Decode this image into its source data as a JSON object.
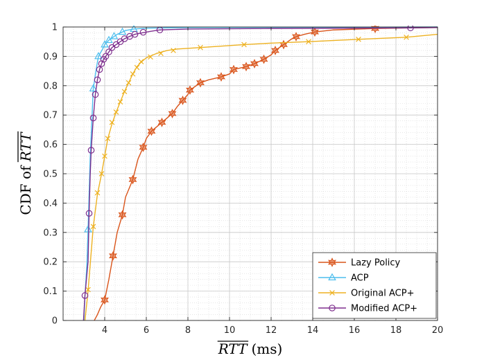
{
  "chart_data": {
    "type": "line",
    "xlabel_var": "RTT",
    "xlabel_unit": "(ms)",
    "ylabel_prefix": "CDF of ",
    "ylabel_var": "RTT",
    "xlim": [
      2,
      20
    ],
    "ylim": [
      0,
      1
    ],
    "xticks": [
      4,
      6,
      8,
      10,
      12,
      14,
      16,
      18,
      20
    ],
    "xtick_labels": [
      "4",
      "6",
      "8",
      "10",
      "12",
      "14",
      "16",
      "18",
      "20"
    ],
    "yticks": [
      0,
      0.1,
      0.2,
      0.3,
      0.4,
      0.5,
      0.6,
      0.7,
      0.8,
      0.9,
      1
    ],
    "ytick_labels": [
      "0",
      "0.1",
      "0.2",
      "0.3",
      "0.4",
      "0.5",
      "0.6",
      "0.7",
      "0.8",
      "0.9",
      "1"
    ],
    "grid": true,
    "minor_grid": true,
    "legend_position": "bottom-right",
    "series": [
      {
        "name": "Lazy Policy",
        "color": "#D95319",
        "marker": "hexagram",
        "line": [
          [
            3.5,
            0
          ],
          [
            3.65,
            0.02
          ],
          [
            3.8,
            0.045
          ],
          [
            4.0,
            0.07
          ],
          [
            4.2,
            0.14
          ],
          [
            4.4,
            0.22
          ],
          [
            4.6,
            0.3
          ],
          [
            4.85,
            0.36
          ],
          [
            5.0,
            0.42
          ],
          [
            5.35,
            0.48
          ],
          [
            5.6,
            0.55
          ],
          [
            5.85,
            0.59
          ],
          [
            6.0,
            0.62
          ],
          [
            6.25,
            0.645
          ],
          [
            6.5,
            0.66
          ],
          [
            6.75,
            0.675
          ],
          [
            7.0,
            0.69
          ],
          [
            7.25,
            0.705
          ],
          [
            7.5,
            0.73
          ],
          [
            7.75,
            0.75
          ],
          [
            8.0,
            0.77
          ],
          [
            8.1,
            0.785
          ],
          [
            8.6,
            0.81
          ],
          [
            9.0,
            0.82
          ],
          [
            9.6,
            0.83
          ],
          [
            10.0,
            0.84
          ],
          [
            10.2,
            0.855
          ],
          [
            10.8,
            0.865
          ],
          [
            11.2,
            0.875
          ],
          [
            11.65,
            0.89
          ],
          [
            12.0,
            0.905
          ],
          [
            12.2,
            0.92
          ],
          [
            12.6,
            0.94
          ],
          [
            13.0,
            0.96
          ],
          [
            13.2,
            0.967
          ],
          [
            13.6,
            0.975
          ],
          [
            14.1,
            0.983
          ],
          [
            15.0,
            0.99
          ],
          [
            17.0,
            0.995
          ],
          [
            18.7,
            0.997
          ],
          [
            20.0,
            0.998
          ]
        ],
        "markers": [
          [
            4.0,
            0.07
          ],
          [
            4.4,
            0.22
          ],
          [
            4.85,
            0.36
          ],
          [
            5.35,
            0.48
          ],
          [
            5.85,
            0.59
          ],
          [
            6.25,
            0.645
          ],
          [
            6.75,
            0.675
          ],
          [
            7.25,
            0.705
          ],
          [
            7.75,
            0.75
          ],
          [
            8.1,
            0.785
          ],
          [
            8.6,
            0.81
          ],
          [
            9.6,
            0.83
          ],
          [
            10.2,
            0.855
          ],
          [
            10.8,
            0.865
          ],
          [
            11.2,
            0.875
          ],
          [
            11.65,
            0.89
          ],
          [
            12.2,
            0.92
          ],
          [
            12.6,
            0.94
          ],
          [
            13.2,
            0.967
          ],
          [
            14.1,
            0.983
          ],
          [
            17.0,
            0.995
          ]
        ]
      },
      {
        "name": "ACP",
        "color": "#4DBEEE",
        "marker": "triangle",
        "line": [
          [
            3.0,
            0
          ],
          [
            3.05,
            0.08
          ],
          [
            3.15,
            0.2
          ],
          [
            3.2,
            0.31
          ],
          [
            3.3,
            0.55
          ],
          [
            3.45,
            0.79
          ],
          [
            3.6,
            0.86
          ],
          [
            3.7,
            0.9
          ],
          [
            3.9,
            0.925
          ],
          [
            4.0,
            0.94
          ],
          [
            4.2,
            0.955
          ],
          [
            4.4,
            0.965
          ],
          [
            4.6,
            0.975
          ],
          [
            4.85,
            0.983
          ],
          [
            5.0,
            0.988
          ],
          [
            5.4,
            0.993
          ],
          [
            6.0,
            0.996
          ],
          [
            8.0,
            0.998
          ],
          [
            20.0,
            1.0
          ]
        ],
        "markers": [
          [
            3.2,
            0.31
          ],
          [
            3.45,
            0.79
          ],
          [
            3.7,
            0.9
          ],
          [
            4.0,
            0.94
          ],
          [
            4.2,
            0.955
          ],
          [
            4.45,
            0.968
          ],
          [
            4.85,
            0.983
          ],
          [
            5.4,
            0.993
          ]
        ]
      },
      {
        "name": "Original ACP+",
        "color": "#EDB120",
        "marker": "x",
        "line": [
          [
            3.05,
            0
          ],
          [
            3.2,
            0.1
          ],
          [
            3.45,
            0.32
          ],
          [
            3.65,
            0.43
          ],
          [
            3.85,
            0.5
          ],
          [
            4.0,
            0.56
          ],
          [
            4.15,
            0.62
          ],
          [
            4.35,
            0.67
          ],
          [
            4.55,
            0.71
          ],
          [
            4.75,
            0.745
          ],
          [
            4.95,
            0.78
          ],
          [
            5.15,
            0.81
          ],
          [
            5.35,
            0.84
          ],
          [
            5.55,
            0.865
          ],
          [
            5.75,
            0.88
          ],
          [
            6.0,
            0.895
          ],
          [
            6.5,
            0.91
          ],
          [
            7.0,
            0.92
          ],
          [
            7.5,
            0.925
          ],
          [
            8.6,
            0.93
          ],
          [
            10.7,
            0.94
          ],
          [
            12.0,
            0.945
          ],
          [
            13.8,
            0.95
          ],
          [
            16.2,
            0.958
          ],
          [
            18.5,
            0.965
          ],
          [
            20.0,
            0.975
          ]
        ],
        "markers": [
          [
            3.2,
            0.105
          ],
          [
            3.45,
            0.32
          ],
          [
            3.65,
            0.435
          ],
          [
            3.85,
            0.5
          ],
          [
            4.0,
            0.56
          ],
          [
            4.15,
            0.62
          ],
          [
            4.35,
            0.675
          ],
          [
            4.55,
            0.71
          ],
          [
            4.75,
            0.745
          ],
          [
            4.95,
            0.78
          ],
          [
            5.15,
            0.81
          ],
          [
            5.35,
            0.84
          ],
          [
            5.55,
            0.862
          ],
          [
            5.75,
            0.882
          ],
          [
            6.2,
            0.898
          ],
          [
            6.7,
            0.91
          ],
          [
            7.3,
            0.92
          ],
          [
            8.6,
            0.93
          ],
          [
            10.7,
            0.94
          ],
          [
            13.8,
            0.95
          ],
          [
            16.2,
            0.958
          ],
          [
            18.5,
            0.965
          ]
        ]
      },
      {
        "name": "Modified ACP+",
        "color": "#7E2F8E",
        "marker": "circle",
        "line": [
          [
            2.98,
            0
          ],
          [
            3.05,
            0.085
          ],
          [
            3.2,
            0.2
          ],
          [
            3.25,
            0.365
          ],
          [
            3.3,
            0.49
          ],
          [
            3.35,
            0.58
          ],
          [
            3.45,
            0.69
          ],
          [
            3.55,
            0.77
          ],
          [
            3.65,
            0.82
          ],
          [
            3.75,
            0.855
          ],
          [
            3.85,
            0.875
          ],
          [
            3.95,
            0.89
          ],
          [
            4.05,
            0.9
          ],
          [
            4.2,
            0.915
          ],
          [
            4.35,
            0.93
          ],
          [
            4.55,
            0.94
          ],
          [
            4.75,
            0.95
          ],
          [
            4.95,
            0.96
          ],
          [
            5.2,
            0.968
          ],
          [
            5.45,
            0.975
          ],
          [
            5.8,
            0.98
          ],
          [
            6.2,
            0.985
          ],
          [
            6.65,
            0.99
          ],
          [
            8.0,
            0.993
          ],
          [
            12.0,
            0.995
          ],
          [
            18.7,
            0.997
          ],
          [
            20.0,
            0.998
          ]
        ],
        "markers": [
          [
            3.05,
            0.085
          ],
          [
            3.25,
            0.365
          ],
          [
            3.35,
            0.58
          ],
          [
            3.45,
            0.69
          ],
          [
            3.55,
            0.77
          ],
          [
            3.65,
            0.82
          ],
          [
            3.75,
            0.855
          ],
          [
            3.85,
            0.875
          ],
          [
            3.95,
            0.89
          ],
          [
            4.05,
            0.9
          ],
          [
            4.2,
            0.915
          ],
          [
            4.35,
            0.93
          ],
          [
            4.55,
            0.94
          ],
          [
            4.75,
            0.95
          ],
          [
            4.95,
            0.96
          ],
          [
            5.2,
            0.968
          ],
          [
            5.45,
            0.975
          ],
          [
            5.85,
            0.982
          ],
          [
            6.65,
            0.99
          ],
          [
            18.7,
            0.997
          ]
        ]
      }
    ]
  }
}
